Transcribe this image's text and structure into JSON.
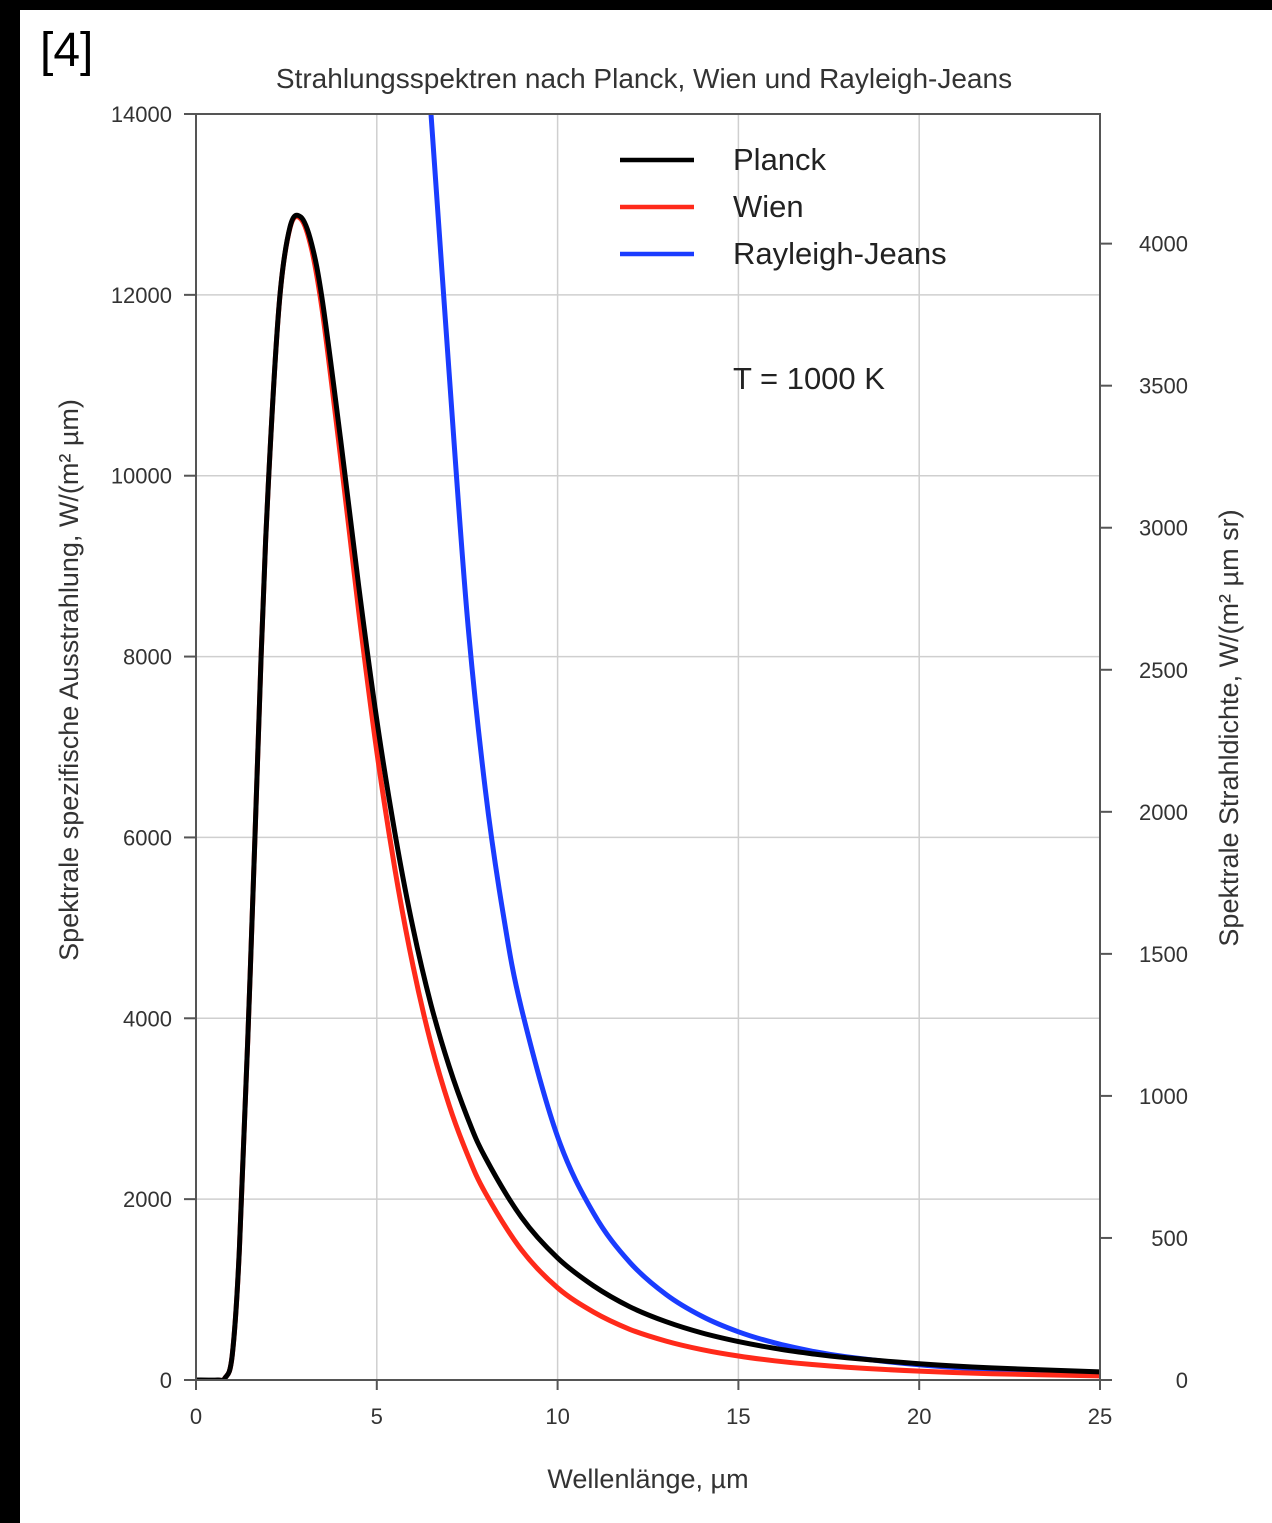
{
  "figure_ref": "[4]",
  "chart_data": {
    "type": "line",
    "title": "Strahlungsspektren nach Planck, Wien und Rayleigh-Jeans",
    "xlabel": "Wellenlänge, µm",
    "ylabel": "Spektrale spezifische Ausstrahlung, W/(m² µm)",
    "ylabel_right": "Spektrale Strahldichte, W/(m² µm sr)",
    "xlim": [
      0,
      25
    ],
    "ylim": [
      0,
      14000
    ],
    "ylim_right": [
      0,
      4456.3
    ],
    "xticks": [
      "0",
      "5",
      "10",
      "15",
      "20",
      "25"
    ],
    "yticks": [
      "0",
      "2000",
      "4000",
      "6000",
      "8000",
      "10000",
      "12000",
      "14000"
    ],
    "yticks_right": [
      "0",
      "500",
      "1000",
      "1500",
      "2000",
      "2500",
      "3000",
      "3500",
      "4000"
    ],
    "annotation": "T = 1000 K",
    "grid": true,
    "legend_position": "top-right",
    "series": [
      {
        "name": "Planck",
        "color": "#000000",
        "x": [
          0.6,
          0.8,
          1.0,
          1.2,
          1.5,
          1.8,
          2.0,
          2.3,
          2.6,
          2.9,
          3.2,
          3.5,
          4,
          4.5,
          5,
          5.5,
          6,
          6.5,
          7,
          7.5,
          8,
          9,
          10,
          11,
          12,
          13,
          14,
          15,
          16,
          17,
          18,
          20,
          22,
          25
        ],
        "y": [
          0,
          20,
          270,
          1450,
          4500,
          8000,
          9900,
          11900,
          12750,
          12860,
          12560,
          11920,
          10400,
          8780,
          7300,
          6050,
          5000,
          4150,
          3470,
          2910,
          2460,
          1800,
          1350,
          1040,
          810,
          645,
          520,
          425,
          350,
          292,
          246,
          180,
          134,
          90
        ]
      },
      {
        "name": "Wien",
        "color": "#ff2a1a",
        "x": [
          0.6,
          0.8,
          1.0,
          1.2,
          1.5,
          1.8,
          2.0,
          2.3,
          2.6,
          2.9,
          3.2,
          3.5,
          4,
          4.5,
          5,
          5.5,
          6,
          6.5,
          7,
          7.5,
          8,
          9,
          10,
          11,
          12,
          13,
          14,
          15,
          16,
          17,
          18,
          20,
          22,
          25
        ],
        "y": [
          0,
          20,
          270,
          1450,
          4500,
          8000,
          9900,
          11900,
          12740,
          12840,
          12500,
          11800,
          10200,
          8500,
          6950,
          5650,
          4580,
          3720,
          3040,
          2500,
          2070,
          1440,
          1020,
          750,
          560,
          430,
          335,
          265,
          212,
          172,
          141,
          98,
          70,
          45
        ]
      },
      {
        "name": "Rayleigh-Jeans",
        "color": "#1a3cff",
        "x": [
          6.5,
          7,
          7.5,
          8,
          8.5,
          9,
          10,
          11,
          12,
          13,
          14,
          15,
          16,
          17,
          18,
          20,
          22,
          25
        ],
        "y": [
          14000,
          11140,
          8450,
          6530,
          5140,
          4110,
          2690,
          1840,
          1300,
          946,
          703,
          533,
          411,
          322,
          256,
          168,
          115,
          69
        ]
      }
    ]
  }
}
